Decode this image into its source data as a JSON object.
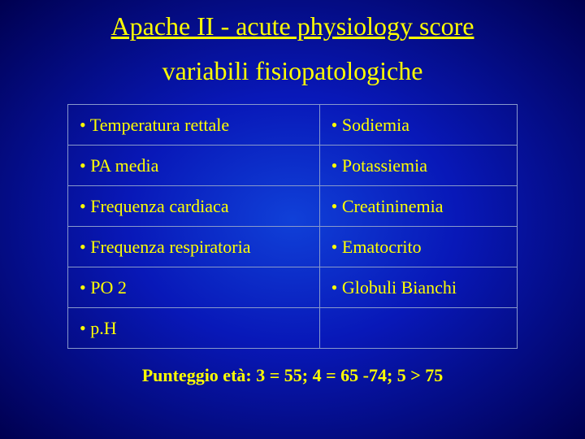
{
  "title": "Apache II - acute physiology score",
  "subtitle": "variabili fisiopatologiche",
  "table": {
    "rows": [
      {
        "left": "• Temperatura rettale",
        "right": "•  Sodiemia"
      },
      {
        "left": "• PA media",
        "right": "• Potassiemia"
      },
      {
        "left": "• Frequenza cardiaca",
        "right": "• Creatininemia"
      },
      {
        "left": "• Frequenza respiratoria",
        "right": "• Ematocrito"
      },
      {
        "left": "• PO 2",
        "right": "• Globuli Bianchi"
      },
      {
        "left": "• p.H",
        "right": ""
      }
    ]
  },
  "footer": "Punteggio età: 3 = 55; 4 = 65 -74; 5 > 75"
}
